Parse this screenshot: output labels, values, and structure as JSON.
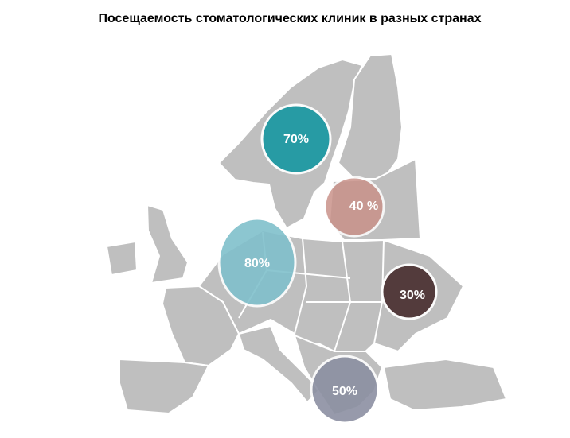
{
  "title": "Посещаемость стоматологических клиник в разных странах",
  "bubbles": [
    {
      "label": "70%",
      "color": "#1f9aa3"
    },
    {
      "label": "40 %",
      "color": "#c9928a"
    },
    {
      "label": "80%",
      "color": "#80c0cc"
    },
    {
      "label": "30%",
      "color": "#4e3435"
    },
    {
      "label": "50%",
      "color": "#8c90a2"
    }
  ]
}
